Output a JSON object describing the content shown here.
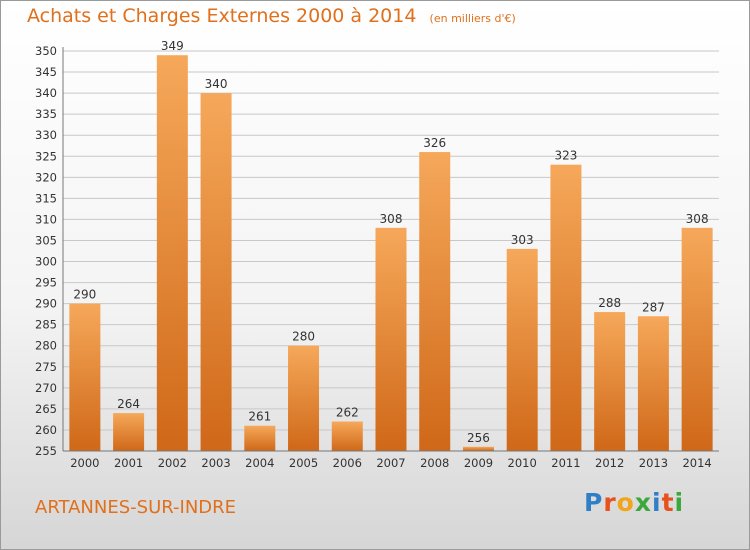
{
  "header": {
    "title": "Achats et Charges Externes 2000 à 2014",
    "unit": "(en milliers d'€)"
  },
  "location": "ARTANNES-SUR-INDRE",
  "brand": {
    "name": "Proxiti",
    "letters": [
      "P",
      "r",
      "o",
      "x",
      "i",
      "t",
      "i"
    ],
    "colors": [
      "#2f7fc8",
      "#e8501c",
      "#f2a51a",
      "#3aa83a",
      "#2f7fc8",
      "#e8501c",
      "#3aa83a"
    ]
  },
  "colors": {
    "bar_top": "#f6a85a",
    "bar_bottom": "#cf6818",
    "accent": "#e0701c",
    "text": "#333333",
    "grid": "#c8c8c8"
  },
  "chart_data": {
    "type": "bar",
    "categories": [
      "2000",
      "2001",
      "2002",
      "2003",
      "2004",
      "2005",
      "2006",
      "2007",
      "2008",
      "2009",
      "2010",
      "2011",
      "2012",
      "2013",
      "2014"
    ],
    "values": [
      290,
      264,
      349,
      340,
      261,
      280,
      262,
      308,
      326,
      256,
      303,
      323,
      288,
      287,
      308
    ],
    "title": "Achats et Charges Externes 2000 à 2014",
    "xlabel": "",
    "ylabel": "",
    "ylim": [
      255,
      350
    ],
    "yticks": [
      255,
      260,
      265,
      270,
      275,
      280,
      285,
      290,
      295,
      300,
      305,
      310,
      315,
      320,
      325,
      330,
      335,
      340,
      345,
      350
    ],
    "grid": true
  }
}
